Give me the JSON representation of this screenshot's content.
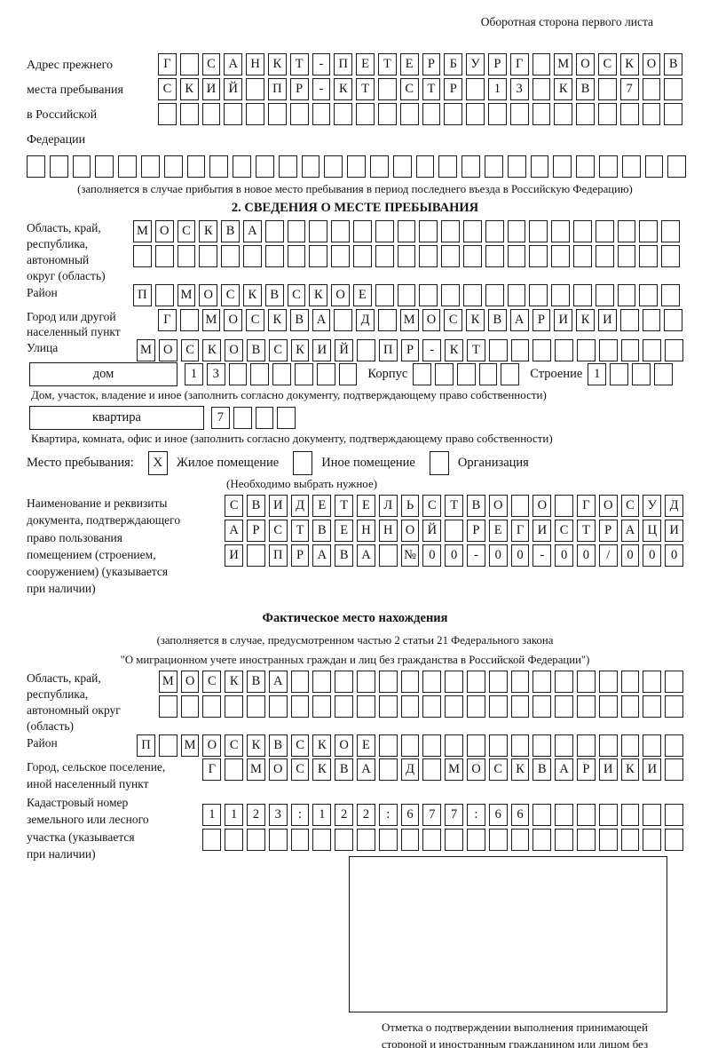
{
  "header": {
    "note": "Оборотная сторона первого листа"
  },
  "prev_address": {
    "label": "Адрес прежнего\nместа пребывания\nв Российской\nФедерации",
    "rows": [
      "Г_САНКТ-ПЕТЕРБУРГ_МОСКОВ",
      "СКИЙ_ПР-КТ_СТР_13_КВ_7__",
      "________________________"
    ],
    "row_full": "_____________________________",
    "caption": "(заполняется в случае прибытия в новое место пребывания в период последнего въезда в Российскую Федерацию)"
  },
  "section2": {
    "title": "2. СВЕДЕНИЯ О МЕСТЕ ПРЕБЫВАНИЯ",
    "region": {
      "label": "Область, край,\nреспублика,\nавтономный\nокруг (область)",
      "row1": "МОСКВА___________________",
      "row2": "_________________________"
    },
    "district": {
      "label": "Район",
      "row": "П_МОСКВСКОЕ______________"
    },
    "city": {
      "label": "Город или другой\nнаселенный пункт",
      "row": "Г_МОСКВА_Д_МОСКВАРИКИ___"
    },
    "street": {
      "label": "Улица",
      "row": "МОСКОВСКИЙ_ПР-КТ_________"
    },
    "house": {
      "box_label": "дом",
      "cells": "13______",
      "korpus_label": "Корпус",
      "korpus_cells": "_____",
      "stroenie_label": "Строение",
      "stroenie_cells": "1___",
      "caption": "Дом, участок, владение и иное (заполнить согласно документу, подтверждающему право собственности)"
    },
    "apartment": {
      "box_label": "квартира",
      "cells": "7___",
      "caption": "Квартира, комната, офис и иное (заполнить согласно документу, подтверждающему право собственности)"
    },
    "stay": {
      "label": "Место пребывания:",
      "options": [
        {
          "mark": "X",
          "label": "Жилое помещение"
        },
        {
          "mark": "",
          "label": "Иное помещение"
        },
        {
          "mark": "",
          "label": "Организация"
        }
      ],
      "note": "(Необходимо выбрать нужное)"
    },
    "doc": {
      "label": "Наименование и реквизиты\nдокумента, подтверждающего\nправо пользования\nпомещением (строением,\nсооружением) (указывается\nпри наличии)",
      "rows": [
        "СВИДЕТЕЛЬСТВО_О_ГОСУД",
        "АРСТВЕННОЙ_РЕГИСТРАЦИ",
        "И_ПРАВА_№00-00-00/000"
      ]
    }
  },
  "section3": {
    "title": "Фактическое место нахождения",
    "caption": "(заполняется в случае, предусмотренном частью 2 статьи 21 Федерального закона\n\"О миграционном учете иностранных граждан и лиц без гражданства в Российской Федерации\")",
    "region": {
      "label": "Область, край,\nреспублика,\nавтономный округ\n(область)",
      "row1": "МОСКВА__________________",
      "row2": "________________________"
    },
    "district": {
      "label": "Район",
      "row": "П_МОСКВСКОЕ______________"
    },
    "city": {
      "label": "Город, сельское поселение,\nиной населенный пункт",
      "row": "Г_МОСКВА_Д_МОСКВАРИКИ_"
    },
    "cadastral": {
      "label": "Кадастровый номер\nземельного или лесного\nучастка (указывается\nпри наличии)",
      "row1": "1123:122:677:66_______",
      "row2": "______________________"
    },
    "stamp_caption": "Отметка о подтверждении выполнения принимающей\nстороной и иностранным гражданином или лицом без\nгражданства действий, необходимых для его постановки\nна учет по месту пребывания"
  }
}
